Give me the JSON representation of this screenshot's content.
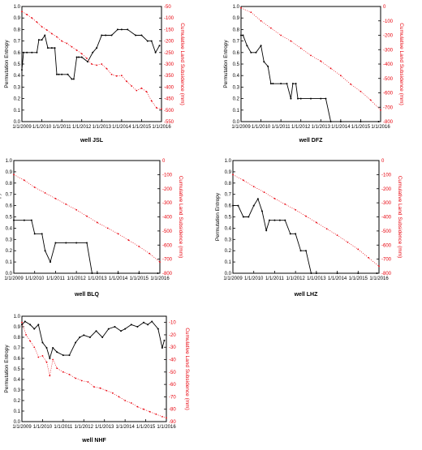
{
  "colors": {
    "entropy": "#000000",
    "subsidence": "#e8000b",
    "frame": "#000000"
  },
  "chart_data": [
    {
      "type": "line",
      "caption": "well  JSL",
      "xlabel": "",
      "ylabel": "Permutation Entropy",
      "y2label": "Cumulative Land Subsidence (mm)",
      "x_ticks": [
        "1/1/2009",
        "1/1/2010",
        "1/1/2011",
        "1/1/2012",
        "1/1/2013",
        "1/1/2014",
        "1/1/2015",
        "1/1/2016"
      ],
      "ylim": [
        0,
        1.0
      ],
      "y_ticks": [
        "0.0",
        "0.1",
        "0.2",
        "0.3",
        "0.4",
        "0.5",
        "0.6",
        "0.7",
        "0.8",
        "0.9",
        "1.0"
      ],
      "y2lim": [
        -550,
        -50
      ],
      "y2_ticks": [
        "-50",
        "-100",
        "-150",
        "-200",
        "-250",
        "-300",
        "-350",
        "-400",
        "-450",
        "-500",
        "-550"
      ],
      "grid": false,
      "series": [
        {
          "axis": "left",
          "color": "#000000",
          "x": [
            2009.0,
            2009.08,
            2009.25,
            2009.5,
            2009.75,
            2009.85,
            2010.0,
            2010.15,
            2010.3,
            2010.5,
            2010.65,
            2010.75,
            2010.85,
            2011.0,
            2011.3,
            2011.5,
            2011.6,
            2011.75,
            2011.85,
            2012.0,
            2012.3,
            2012.55,
            2012.75,
            2013.0,
            2013.2,
            2013.5,
            2013.8,
            2014.0,
            2014.3,
            2014.7,
            2015.0,
            2015.3,
            2015.5,
            2015.7,
            2015.9
          ],
          "y": [
            0.45,
            0.6,
            0.6,
            0.6,
            0.6,
            0.71,
            0.71,
            0.75,
            0.64,
            0.64,
            0.64,
            0.41,
            0.41,
            0.41,
            0.41,
            0.37,
            0.37,
            0.56,
            0.56,
            0.56,
            0.52,
            0.6,
            0.64,
            0.75,
            0.75,
            0.75,
            0.8,
            0.8,
            0.8,
            0.75,
            0.75,
            0.7,
            0.7,
            0.6,
            0.66
          ]
        },
        {
          "axis": "right",
          "color": "#e8000b",
          "x": [
            2009.0,
            2009.25,
            2009.5,
            2009.75,
            2010.0,
            2010.25,
            2010.5,
            2010.75,
            2011.0,
            2011.25,
            2011.5,
            2011.75,
            2012.0,
            2012.25,
            2012.5,
            2012.75,
            2013.0,
            2013.25,
            2013.5,
            2013.75,
            2014.0,
            2014.25,
            2014.5,
            2014.75,
            2015.0,
            2015.25,
            2015.5,
            2015.75,
            2016.0
          ],
          "y": [
            -72,
            -85,
            -100,
            -118,
            -138,
            -152,
            -168,
            -182,
            -200,
            -210,
            -225,
            -240,
            -255,
            -275,
            -300,
            -305,
            -300,
            -320,
            -345,
            -352,
            -350,
            -375,
            -395,
            -415,
            -405,
            -420,
            -460,
            -490,
            -495
          ]
        }
      ]
    },
    {
      "type": "line",
      "caption": "well  DFZ",
      "xlabel": "",
      "ylabel": "Permutation Entropy",
      "y2label": "Cumulative Land Subsidence (mm)",
      "x_ticks": [
        "1/1/2009",
        "1/1/2010",
        "1/1/2011",
        "1/1/2012",
        "1/1/2013",
        "1/1/2014",
        "1/1/2015",
        "1/1/2016"
      ],
      "ylim": [
        0,
        1.0
      ],
      "y_ticks": [
        "0.0",
        "0.1",
        "0.2",
        "0.3",
        "0.4",
        "0.5",
        "0.6",
        "0.7",
        "0.8",
        "0.9",
        "1.0"
      ],
      "y2lim": [
        -800,
        0
      ],
      "y2_ticks": [
        "0",
        "-100",
        "-200",
        "-300",
        "-400",
        "-500",
        "-600",
        "-700",
        "-800"
      ],
      "grid": false,
      "series": [
        {
          "axis": "left",
          "color": "#000000",
          "x": [
            2009.0,
            2009.1,
            2009.3,
            2009.5,
            2009.75,
            2010.0,
            2010.15,
            2010.35,
            2010.5,
            2010.6,
            2011.0,
            2011.3,
            2011.5,
            2011.6,
            2011.75,
            2011.85,
            2012.0,
            2012.5,
            2013.0,
            2013.25,
            2013.5,
            2014.0,
            2015.0,
            2015.9
          ],
          "y": [
            0.75,
            0.75,
            0.66,
            0.6,
            0.6,
            0.66,
            0.52,
            0.48,
            0.33,
            0.33,
            0.33,
            0.33,
            0.2,
            0.33,
            0.33,
            0.2,
            0.2,
            0.2,
            0.2,
            0.2,
            0.0,
            0.0,
            0.0,
            0.0
          ]
        },
        {
          "axis": "right",
          "color": "#e8000b",
          "x": [
            2009.0,
            2009.5,
            2010.0,
            2010.5,
            2011.0,
            2011.5,
            2012.0,
            2012.5,
            2013.0,
            2013.5,
            2014.0,
            2014.5,
            2015.0,
            2015.5,
            2016.0
          ],
          "y": [
            -10,
            -40,
            -100,
            -150,
            -200,
            -240,
            -290,
            -340,
            -380,
            -430,
            -480,
            -540,
            -590,
            -650,
            -720
          ]
        }
      ]
    },
    {
      "type": "line",
      "caption": "well  BLQ",
      "xlabel": "",
      "ylabel": "Permutation Entropy",
      "y2label": "Cumulative Land Subsidence (mm)",
      "x_ticks": [
        "1/1/2009",
        "1/1/2010",
        "1/1/2011",
        "1/1/2012",
        "1/1/2013",
        "1/1/2014",
        "1/1/2015",
        "1/1/2016"
      ],
      "ylim": [
        0,
        1.0
      ],
      "y_ticks": [
        "0.0",
        "0.1",
        "0.2",
        "0.3",
        "0.4",
        "0.5",
        "0.6",
        "0.7",
        "0.8",
        "0.9",
        "1.0"
      ],
      "y2lim": [
        -800,
        0
      ],
      "y2_ticks": [
        "0",
        "-100",
        "-200",
        "-300",
        "-400",
        "-500",
        "-600",
        "-700",
        "-800"
      ],
      "grid": false,
      "series": [
        {
          "axis": "left",
          "color": "#000000",
          "x": [
            2009.0,
            2009.5,
            2009.85,
            2010.0,
            2010.35,
            2010.5,
            2010.75,
            2011.0,
            2011.5,
            2012.0,
            2012.5,
            2012.75,
            2013.0,
            2014.0,
            2015.0,
            2015.9
          ],
          "y": [
            0.47,
            0.47,
            0.47,
            0.35,
            0.35,
            0.2,
            0.1,
            0.27,
            0.27,
            0.27,
            0.27,
            0.0,
            0.0,
            0.0,
            0.0,
            0.0
          ]
        },
        {
          "axis": "right",
          "color": "#e8000b",
          "x": [
            2009.0,
            2009.5,
            2010.0,
            2010.5,
            2011.0,
            2011.5,
            2012.0,
            2012.5,
            2013.0,
            2013.5,
            2014.0,
            2014.5,
            2015.0,
            2015.5,
            2016.0
          ],
          "y": [
            -100,
            -140,
            -190,
            -230,
            -270,
            -310,
            -350,
            -395,
            -440,
            -480,
            -520,
            -565,
            -610,
            -660,
            -720
          ]
        }
      ]
    },
    {
      "type": "line",
      "caption": "well  LHZ",
      "xlabel": "",
      "ylabel": "Permutation Entropy",
      "y2label": "Cumulative Land Subsidence (mm)",
      "x_ticks": [
        "1/1/2009",
        "1/1/2010",
        "1/1/2011",
        "1/1/2012",
        "1/1/2013",
        "1/1/2014",
        "1/1/2015",
        "1/1/2016"
      ],
      "ylim": [
        0,
        1.0
      ],
      "y_ticks": [
        "0.0",
        "0.1",
        "0.2",
        "0.3",
        "0.4",
        "0.5",
        "0.6",
        "0.7",
        "0.8",
        "0.9",
        "1.0"
      ],
      "y2lim": [
        -800,
        0
      ],
      "y2_ticks": [
        "0",
        "-100",
        "-200",
        "-300",
        "-400",
        "-500",
        "-600",
        "-700",
        "-800"
      ],
      "grid": false,
      "series": [
        {
          "axis": "left",
          "color": "#000000",
          "x": [
            2009.0,
            2009.25,
            2009.5,
            2009.75,
            2010.0,
            2010.2,
            2010.4,
            2010.6,
            2010.75,
            2011.0,
            2011.25,
            2011.5,
            2011.75,
            2012.0,
            2012.25,
            2012.5,
            2012.75,
            2013.0,
            2014.0,
            2015.0,
            2015.9
          ],
          "y": [
            0.6,
            0.6,
            0.5,
            0.5,
            0.6,
            0.66,
            0.55,
            0.38,
            0.47,
            0.47,
            0.47,
            0.47,
            0.35,
            0.35,
            0.2,
            0.2,
            0.0,
            0.0,
            0.0,
            0.0,
            0.0
          ]
        },
        {
          "axis": "right",
          "color": "#e8000b",
          "x": [
            2009.0,
            2009.5,
            2010.0,
            2010.5,
            2011.0,
            2011.5,
            2012.0,
            2012.5,
            2013.0,
            2013.5,
            2014.0,
            2014.5,
            2015.0,
            2015.5,
            2016.0
          ],
          "y": [
            -100,
            -140,
            -185,
            -225,
            -270,
            -310,
            -350,
            -395,
            -440,
            -485,
            -530,
            -580,
            -630,
            -690,
            -750
          ]
        }
      ]
    },
    {
      "type": "line",
      "caption": "well  NHF",
      "xlabel": "",
      "ylabel": "Permutation Entropy",
      "y2label": "Cumulative Land Subsidence (mm)",
      "x_ticks": [
        "1/1/2009",
        "1/1/2010",
        "1/1/2011",
        "1/1/2012",
        "1/1/2013",
        "1/1/2014",
        "1/1/2015",
        "1/1/2016"
      ],
      "ylim": [
        0,
        1.0
      ],
      "y_ticks": [
        "0.0",
        "0.1",
        "0.2",
        "0.3",
        "0.4",
        "0.5",
        "0.6",
        "0.7",
        "0.8",
        "0.9",
        "1.0"
      ],
      "y2lim": [
        -90,
        -5
      ],
      "y2_ticks": [
        "-10",
        "-20",
        "-30",
        "-40",
        "-50",
        "-60",
        "-70",
        "-80",
        "-90"
      ],
      "grid": false,
      "series": [
        {
          "axis": "left",
          "color": "#000000",
          "x": [
            2009.0,
            2009.15,
            2009.4,
            2009.6,
            2009.8,
            2010.0,
            2010.2,
            2010.35,
            2010.5,
            2010.7,
            2011.0,
            2011.3,
            2011.6,
            2011.8,
            2012.0,
            2012.3,
            2012.6,
            2012.9,
            2013.2,
            2013.5,
            2013.8,
            2014.0,
            2014.3,
            2014.6,
            2014.9,
            2015.1,
            2015.3,
            2015.6,
            2015.8,
            2015.9
          ],
          "y": [
            0.92,
            0.95,
            0.92,
            0.88,
            0.92,
            0.75,
            0.7,
            0.6,
            0.7,
            0.66,
            0.63,
            0.63,
            0.75,
            0.8,
            0.82,
            0.8,
            0.86,
            0.8,
            0.88,
            0.9,
            0.86,
            0.88,
            0.92,
            0.9,
            0.94,
            0.92,
            0.95,
            0.88,
            0.7,
            0.77
          ]
        },
        {
          "axis": "right",
          "color": "#e8000b",
          "x": [
            2009.0,
            2009.2,
            2009.4,
            2009.6,
            2009.8,
            2010.0,
            2010.2,
            2010.35,
            2010.5,
            2010.7,
            2011.0,
            2011.3,
            2011.6,
            2011.9,
            2012.2,
            2012.5,
            2012.8,
            2013.1,
            2013.4,
            2013.7,
            2014.0,
            2014.3,
            2014.6,
            2014.9,
            2015.2,
            2015.5,
            2015.8,
            2016.0
          ],
          "y": [
            -10,
            -20,
            -25,
            -30,
            -38,
            -37,
            -42,
            -53,
            -40,
            -47,
            -50,
            -52,
            -55,
            -57,
            -58,
            -62,
            -63,
            -65,
            -67,
            -70,
            -73,
            -75,
            -78,
            -80,
            -82,
            -84,
            -86,
            -87
          ]
        }
      ]
    }
  ]
}
